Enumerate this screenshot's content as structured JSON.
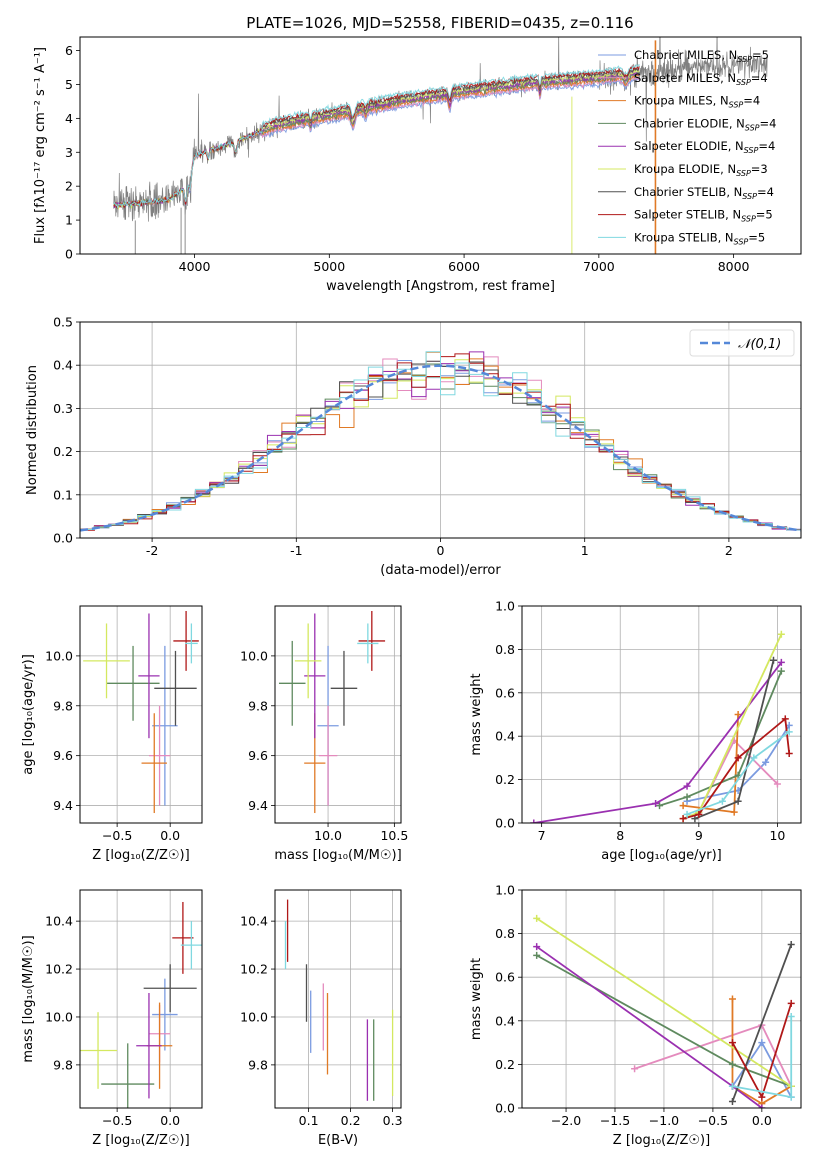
{
  "page_title": "PLATE=1026, MJD=52558, FIBERID=0435, z=0.116",
  "series_colors": [
    "#7b9be0",
    "#e48bbd",
    "#e07a26",
    "#5f8a5f",
    "#9a30b0",
    "#d4e860",
    "#505050",
    "#b01818",
    "#80d8e0"
  ],
  "chart_data": [
    {
      "id": "spectrum",
      "type": "line",
      "title": "PLATE=1026, MJD=52558, FIBERID=0435, z=0.116",
      "xlabel": "wavelength [Angstrom, rest frame]",
      "ylabel": "Flux [fλ10⁻¹⁷ erg cm⁻² s⁻¹ A⁻¹]",
      "xlim": [
        3150,
        8500
      ],
      "ylim": [
        0,
        6.4
      ],
      "xticks": [
        4000,
        5000,
        6000,
        7000,
        8000
      ],
      "yticks": [
        0,
        1,
        2,
        3,
        4,
        5,
        6
      ],
      "legend_placement": "right",
      "legend": [
        "Chabrier MILES, N_SSP=5",
        "Salpeter MILES, N_SSP=4",
        "Kroupa MILES, N_SSP=4",
        "Chabrier ELODIE, N_SSP=4",
        "Salpeter ELODIE, N_SSP=4",
        "Kroupa ELODIE, N_SSP=3",
        "Chabrier STELIB, N_SSP=4",
        "Salpeter STELIB, N_SSP=5",
        "Kroupa STELIB, N_SSP=5"
      ],
      "data_color": "#808080",
      "continuum": {
        "x": [
          3400,
          3600,
          3800,
          3950,
          4000,
          4300,
          4600,
          5000,
          5500,
          6000,
          6500,
          7000,
          7300,
          7500,
          7800,
          8100,
          8250
        ],
        "y": [
          1.45,
          1.5,
          1.6,
          2.0,
          2.9,
          3.3,
          3.8,
          4.1,
          4.5,
          4.8,
          5.05,
          5.2,
          5.35,
          5.45,
          5.55,
          5.6,
          5.6
        ]
      },
      "model_x_range": [
        3400,
        7300
      ],
      "data_x_range": [
        3400,
        8250
      ],
      "grid": false
    },
    {
      "id": "residuals",
      "type": "area",
      "xlabel": "(data-model)/error",
      "ylabel": "Normed distribution",
      "xlim": [
        -2.5,
        2.5
      ],
      "ylim": [
        0,
        0.5
      ],
      "xticks": [
        -2,
        -1,
        0,
        1,
        2
      ],
      "yticks": [
        0.0,
        0.1,
        0.2,
        0.3,
        0.4,
        0.5
      ],
      "bin_width": 0.1,
      "reference_label": "𝒩(0,1)",
      "reference_color": "#5588d8",
      "legend_placement": "top-right",
      "grid": true
    },
    {
      "id": "age-vs-Z",
      "type": "scatter",
      "xlabel": "Z [log₁₀(Z/Z☉)]",
      "ylabel": "age  [log₁₀(age/yr)]",
      "xlim": [
        -0.85,
        0.3
      ],
      "ylim": [
        9.33,
        10.2
      ],
      "xticks": [
        -0.5,
        0.0
      ],
      "yticks": [
        9.4,
        9.6,
        9.8,
        10.0
      ],
      "points": [
        {
          "x": -0.05,
          "y": 9.72,
          "xerr": 0.12,
          "yerr": 0.32
        },
        {
          "x": -0.1,
          "y": 9.6,
          "xerr": 0.1,
          "yerr": 0.2
        },
        {
          "x": -0.15,
          "y": 9.57,
          "xerr": 0.12,
          "yerr": 0.2
        },
        {
          "x": -0.35,
          "y": 9.89,
          "xerr": 0.25,
          "yerr": 0.15
        },
        {
          "x": -0.2,
          "y": 9.92,
          "xerr": 0.1,
          "yerr": 0.25
        },
        {
          "x": -0.6,
          "y": 9.98,
          "xerr": 0.22,
          "yerr": 0.15
        },
        {
          "x": 0.05,
          "y": 9.87,
          "xerr": 0.2,
          "yerr": 0.15
        },
        {
          "x": 0.15,
          "y": 10.06,
          "xerr": 0.12,
          "yerr": 0.12
        },
        {
          "x": 0.2,
          "y": 10.05,
          "xerr": 0.06,
          "yerr": 0.08
        }
      ],
      "grid": true
    },
    {
      "id": "age-vs-mass",
      "type": "scatter",
      "xlabel": "mass [log₁₀(M/M☉)]",
      "ylabel": "",
      "xlim": [
        9.6,
        10.55
      ],
      "ylim": [
        9.33,
        10.2
      ],
      "xticks": [
        10.0,
        10.5
      ],
      "yticks": [
        9.4,
        9.6,
        9.8,
        10.0
      ],
      "points": [
        {
          "x": 10.0,
          "y": 9.72,
          "xerr": 0.08,
          "yerr": 0.32
        },
        {
          "x": 10.0,
          "y": 9.6,
          "xerr": 0.07,
          "yerr": 0.2
        },
        {
          "x": 9.9,
          "y": 9.57,
          "xerr": 0.08,
          "yerr": 0.2
        },
        {
          "x": 9.73,
          "y": 9.89,
          "xerr": 0.1,
          "yerr": 0.17
        },
        {
          "x": 9.9,
          "y": 9.92,
          "xerr": 0.08,
          "yerr": 0.25
        },
        {
          "x": 9.85,
          "y": 9.98,
          "xerr": 0.1,
          "yerr": 0.15
        },
        {
          "x": 10.12,
          "y": 9.87,
          "xerr": 0.1,
          "yerr": 0.15
        },
        {
          "x": 10.33,
          "y": 10.06,
          "xerr": 0.1,
          "yerr": 0.12
        },
        {
          "x": 10.3,
          "y": 10.05,
          "xerr": 0.08,
          "yerr": 0.08
        }
      ],
      "grid": true
    },
    {
      "id": "massweight-vs-age",
      "type": "line",
      "xlabel": "age  [log₁₀(age/yr)]",
      "ylabel": "mass weight",
      "xlim": [
        6.75,
        10.3
      ],
      "ylim": [
        0,
        1.0
      ],
      "xticks": [
        7,
        8,
        9,
        10
      ],
      "yticks": [
        0.0,
        0.2,
        0.4,
        0.6,
        0.8,
        1.0
      ],
      "series": [
        {
          "x": [
            8.85,
            9.5,
            9.85,
            10.15
          ],
          "y": [
            0.1,
            0.15,
            0.28,
            0.45
          ]
        },
        {
          "x": [
            9.0,
            9.45,
            10.0
          ],
          "y": [
            0.05,
            0.38,
            0.18
          ]
        },
        {
          "x": [
            8.8,
            9.45,
            9.5
          ],
          "y": [
            0.08,
            0.05,
            0.5
          ]
        },
        {
          "x": [
            8.5,
            8.85,
            9.5,
            10.05
          ],
          "y": [
            0.08,
            0.12,
            0.22,
            0.7
          ]
        },
        {
          "x": [
            6.9,
            8.45,
            8.85,
            10.05
          ],
          "y": [
            0.0,
            0.09,
            0.17,
            0.74
          ]
        },
        {
          "x": [
            8.8,
            9.0,
            10.05
          ],
          "y": [
            0.02,
            0.05,
            0.87
          ]
        },
        {
          "x": [
            8.95,
            9.5,
            9.95
          ],
          "y": [
            0.02,
            0.1,
            0.75
          ]
        },
        {
          "x": [
            8.8,
            9.0,
            9.5,
            10.1,
            10.15
          ],
          "y": [
            0.02,
            0.04,
            0.3,
            0.48,
            0.32
          ]
        },
        {
          "x": [
            8.85,
            9.3,
            9.7,
            10.15
          ],
          "y": [
            0.04,
            0.1,
            0.3,
            0.42
          ]
        }
      ],
      "grid": true
    },
    {
      "id": "mass-vs-Z",
      "type": "scatter",
      "xlabel": "Z [log₁₀(Z/Z☉)]",
      "ylabel": "mass [log₁₀(M/M☉)]",
      "xlim": [
        -0.85,
        0.3
      ],
      "ylim": [
        9.62,
        10.53
      ],
      "xticks": [
        -0.5,
        0.0
      ],
      "yticks": [
        9.8,
        10.0,
        10.2,
        10.4
      ],
      "points": [
        {
          "x": -0.05,
          "y": 10.01,
          "xerr": 0.12,
          "yerr": 0.15
        },
        {
          "x": -0.1,
          "y": 9.93,
          "xerr": 0.1,
          "yerr": 0.12
        },
        {
          "x": -0.1,
          "y": 9.88,
          "xerr": 0.12,
          "yerr": 0.18
        },
        {
          "x": -0.4,
          "y": 9.72,
          "xerr": 0.25,
          "yerr": 0.17
        },
        {
          "x": -0.2,
          "y": 9.88,
          "xerr": 0.12,
          "yerr": 0.22
        },
        {
          "x": -0.68,
          "y": 9.86,
          "xerr": 0.18,
          "yerr": 0.16
        },
        {
          "x": 0.0,
          "y": 10.12,
          "xerr": 0.25,
          "yerr": 0.1
        },
        {
          "x": 0.12,
          "y": 10.33,
          "xerr": 0.1,
          "yerr": 0.15
        },
        {
          "x": 0.2,
          "y": 10.3,
          "xerr": 0.1,
          "yerr": 0.1
        }
      ],
      "grid": true
    },
    {
      "id": "mass-vs-EBV",
      "type": "scatter",
      "xlabel": "E(B-V)",
      "ylabel": "",
      "xlim": [
        0.02,
        0.32
      ],
      "ylim": [
        9.62,
        10.53
      ],
      "xticks": [
        0.1,
        0.2,
        0.3
      ],
      "yticks": [
        9.8,
        10.0,
        10.2,
        10.4
      ],
      "points": [
        {
          "x": 0.105,
          "y": 9.98,
          "xerr": 0,
          "yerr": 0.13
        },
        {
          "x": 0.135,
          "y": 10.0,
          "xerr": 0,
          "yerr": 0.14
        },
        {
          "x": 0.145,
          "y": 9.93,
          "xerr": 0,
          "yerr": 0.17
        },
        {
          "x": 0.255,
          "y": 9.82,
          "xerr": 0,
          "yerr": 0.17
        },
        {
          "x": 0.24,
          "y": 9.82,
          "xerr": 0,
          "yerr": 0.17
        },
        {
          "x": 0.3,
          "y": 9.85,
          "xerr": 0,
          "yerr": 0.18
        },
        {
          "x": 0.095,
          "y": 10.1,
          "xerr": 0,
          "yerr": 0.12
        },
        {
          "x": 0.05,
          "y": 10.36,
          "xerr": 0,
          "yerr": 0.13
        },
        {
          "x": 0.045,
          "y": 10.3,
          "xerr": 0,
          "yerr": 0.1
        }
      ],
      "grid": true
    },
    {
      "id": "massweight-vs-Z",
      "type": "line",
      "xlabel": "Z [log₁₀(Z/Z☉)]",
      "ylabel": "mass weight",
      "xlim": [
        -2.45,
        0.4
      ],
      "ylim": [
        0,
        1.0
      ],
      "xticks": [
        -2.0,
        -1.5,
        -1.0,
        -0.5,
        0.0
      ],
      "yticks": [
        0.0,
        0.2,
        0.4,
        0.6,
        0.8,
        1.0
      ],
      "series": [
        {
          "x": [
            -0.3,
            0.0,
            0.3
          ],
          "y": [
            0.1,
            0.3,
            0.05
          ]
        },
        {
          "x": [
            -1.3,
            0.0,
            0.3
          ],
          "y": [
            0.18,
            0.38,
            0.1
          ]
        },
        {
          "x": [
            -0.3,
            -0.3,
            0.0,
            0.3
          ],
          "y": [
            0.5,
            0.1,
            0.02,
            0.1
          ]
        },
        {
          "x": [
            -2.3,
            -0.3,
            0.3
          ],
          "y": [
            0.7,
            0.2,
            0.1
          ]
        },
        {
          "x": [
            -2.3,
            -0.3,
            0.0
          ],
          "y": [
            0.74,
            0.1,
            0.0
          ]
        },
        {
          "x": [
            -2.3,
            0.3
          ],
          "y": [
            0.87,
            0.1
          ]
        },
        {
          "x": [
            -0.3,
            0.3
          ],
          "y": [
            0.03,
            0.75
          ]
        },
        {
          "x": [
            -0.3,
            0.0,
            0.3
          ],
          "y": [
            0.3,
            0.05,
            0.48
          ]
        },
        {
          "x": [
            -0.3,
            0.3,
            0.3
          ],
          "y": [
            0.1,
            0.05,
            0.42
          ]
        }
      ],
      "grid": true
    }
  ]
}
